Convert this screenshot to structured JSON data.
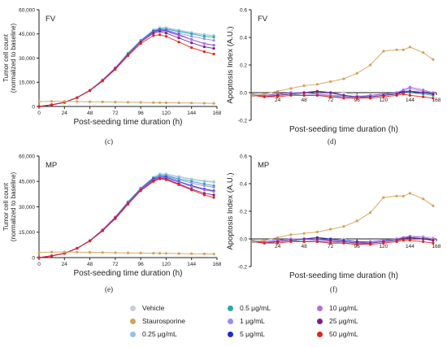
{
  "captions": [
    "(c)",
    "(d)",
    "(e)",
    "(f)"
  ],
  "legend": [
    {
      "label": "Vehicle",
      "color": "#c9cdd6"
    },
    {
      "label": "0.5 μg/mL",
      "color": "#26a9a7"
    },
    {
      "label": "10 μg/mL",
      "color": "#b36fe0"
    },
    {
      "label": "Staurosporine",
      "color": "#d4a259"
    },
    {
      "label": "1 μg/mL",
      "color": "#9b8cf0"
    },
    {
      "label": "25 μg/mL",
      "color": "#7a1f8c"
    },
    {
      "label": "0.25 μg/mL",
      "color": "#8fc3ea"
    },
    {
      "label": "5 μg/mL",
      "color": "#1a2ad6"
    },
    {
      "label": "50 μg/mL",
      "color": "#e3241b"
    }
  ],
  "chart_data": [
    {
      "type": "line",
      "tag": "FV",
      "title": "",
      "xlabel": "Post-seeding time duration (h)",
      "ylabel": "Tumor cell count (normalized to baseline)",
      "xlim": [
        0,
        168
      ],
      "ylim": [
        0,
        60000
      ],
      "xticks": [
        "0",
        "24",
        "48",
        "72",
        "96",
        "120",
        "144",
        "168"
      ],
      "yticks": [
        "0",
        "15,000",
        "30,000",
        "45,000",
        "60,000"
      ],
      "x": [
        0,
        12,
        24,
        36,
        48,
        60,
        72,
        84,
        96,
        108,
        114,
        120,
        132,
        144,
        156,
        165
      ],
      "series": [
        {
          "name": "Vehicle",
          "values": [
            0,
            1000,
            2500,
            5500,
            10000,
            16500,
            24000,
            33000,
            41000,
            47500,
            49000,
            49000,
            47500,
            46000,
            44500,
            44000
          ]
        },
        {
          "name": "0.25 μg/mL",
          "values": [
            0,
            1000,
            2500,
            5500,
            10000,
            16500,
            24000,
            33000,
            41000,
            47500,
            48500,
            48500,
            47000,
            45500,
            44500,
            44000
          ]
        },
        {
          "name": "0.5 μg/mL",
          "values": [
            0,
            1000,
            2500,
            5500,
            10000,
            16500,
            24000,
            33000,
            41000,
            47000,
            48000,
            48000,
            46500,
            45000,
            43500,
            43000
          ]
        },
        {
          "name": "1 μg/mL",
          "values": [
            0,
            1000,
            2500,
            5500,
            10000,
            16500,
            24000,
            32500,
            40500,
            46500,
            47500,
            47500,
            45500,
            43500,
            42000,
            41000
          ]
        },
        {
          "name": "5 μg/mL",
          "values": [
            0,
            1000,
            2500,
            5500,
            10000,
            16000,
            23500,
            32500,
            40500,
            46500,
            47500,
            47000,
            44500,
            41500,
            39000,
            38000
          ]
        },
        {
          "name": "10 μg/mL",
          "values": [
            0,
            1000,
            2500,
            5500,
            10000,
            16500,
            24000,
            32500,
            40500,
            46000,
            47000,
            46500,
            44000,
            41500,
            39000,
            38000
          ]
        },
        {
          "name": "25 μg/mL",
          "values": [
            0,
            1000,
            2500,
            5500,
            10000,
            16000,
            23500,
            32000,
            40000,
            45500,
            46500,
            45500,
            42500,
            39500,
            37000,
            36000
          ]
        },
        {
          "name": "50 μg/mL",
          "values": [
            0,
            1000,
            2500,
            5500,
            9800,
            15800,
            23000,
            31500,
            39000,
            44000,
            44500,
            43500,
            40000,
            36500,
            34000,
            32500
          ]
        },
        {
          "name": "Staurosporine",
          "values": [
            3000,
            3200,
            3200,
            3000,
            2900,
            2800,
            2700,
            2600,
            2500,
            2400,
            2350,
            2300,
            2200,
            2100,
            2000,
            1900
          ]
        }
      ]
    },
    {
      "type": "line",
      "tag": "FV",
      "title": "",
      "xlabel": "Post-seeding time duration (h)",
      "ylabel": "Apoptosis Index (A.U.)",
      "xlim": [
        0,
        168
      ],
      "ylim": [
        -0.2,
        0.6
      ],
      "xticks": [
        "24",
        "48",
        "72",
        "96",
        "120",
        "144",
        "168"
      ],
      "yticks": [
        "-0.2",
        "0.0",
        "0.2",
        "0.4",
        "0.6"
      ],
      "x": [
        2,
        12,
        24,
        36,
        48,
        60,
        72,
        84,
        96,
        108,
        120,
        132,
        138,
        144,
        156,
        165
      ],
      "series": [
        {
          "name": "Vehicle",
          "values": [
            -0.01,
            -0.02,
            -0.01,
            0.0,
            -0.01,
            -0.02,
            -0.01,
            0.0,
            -0.02,
            -0.03,
            -0.02,
            -0.01,
            0.0,
            0.01,
            0.01,
            0.0
          ]
        },
        {
          "name": "0.25 μg/mL",
          "values": [
            -0.01,
            -0.02,
            -0.02,
            -0.01,
            -0.02,
            -0.02,
            -0.02,
            -0.03,
            -0.04,
            -0.03,
            -0.02,
            0.0,
            0.01,
            0.01,
            0.0,
            -0.01
          ]
        },
        {
          "name": "0.5 μg/mL",
          "values": [
            -0.02,
            -0.03,
            -0.02,
            -0.01,
            -0.02,
            -0.02,
            -0.03,
            -0.03,
            -0.04,
            -0.03,
            -0.02,
            -0.01,
            0.0,
            0.0,
            -0.01,
            -0.02
          ]
        },
        {
          "name": "1 μg/mL",
          "values": [
            -0.02,
            -0.02,
            -0.01,
            0.0,
            0.0,
            -0.01,
            -0.02,
            -0.02,
            -0.03,
            -0.02,
            -0.01,
            0.0,
            0.02,
            0.03,
            0.01,
            0.0
          ]
        },
        {
          "name": "5 μg/mL",
          "values": [
            -0.02,
            -0.02,
            -0.01,
            0.0,
            0.0,
            0.01,
            0.0,
            -0.02,
            -0.03,
            -0.02,
            -0.01,
            0.0,
            0.01,
            0.01,
            0.0,
            -0.01
          ]
        },
        {
          "name": "10 μg/mL",
          "values": [
            -0.02,
            -0.02,
            -0.01,
            0.0,
            0.0,
            -0.01,
            -0.02,
            -0.03,
            -0.03,
            -0.02,
            -0.01,
            0.0,
            0.02,
            0.04,
            0.02,
            0.0
          ]
        },
        {
          "name": "25 μg/mL",
          "values": [
            -0.02,
            -0.03,
            -0.02,
            -0.01,
            0.0,
            0.01,
            0.0,
            -0.02,
            -0.03,
            -0.03,
            -0.02,
            -0.01,
            0.0,
            0.01,
            0.0,
            -0.01
          ]
        },
        {
          "name": "50 μg/mL",
          "values": [
            -0.02,
            -0.03,
            -0.03,
            -0.02,
            -0.02,
            -0.02,
            -0.03,
            -0.04,
            -0.04,
            -0.04,
            -0.03,
            -0.02,
            -0.01,
            -0.02,
            -0.03,
            -0.04
          ]
        },
        {
          "name": "Staurosporine",
          "values": [
            -0.02,
            -0.01,
            0.01,
            0.03,
            0.05,
            0.06,
            0.08,
            0.1,
            0.14,
            0.2,
            0.3,
            0.31,
            0.31,
            0.33,
            0.29,
            0.24
          ]
        }
      ]
    },
    {
      "type": "line",
      "tag": "MP",
      "title": "",
      "xlabel": "Post-seeding time duration (h)",
      "ylabel": "Tumor cell count (normalized to baseline)",
      "xlim": [
        0,
        168
      ],
      "ylim": [
        0,
        60000
      ],
      "xticks": [
        "0",
        "24",
        "48",
        "72",
        "96",
        "120",
        "144",
        "168"
      ],
      "yticks": [
        "0",
        "15,000",
        "30,000",
        "45,000",
        "60,000"
      ],
      "x": [
        0,
        12,
        24,
        36,
        48,
        60,
        72,
        84,
        96,
        108,
        114,
        120,
        132,
        144,
        156,
        165
      ],
      "series": [
        {
          "name": "Vehicle",
          "values": [
            0,
            1000,
            2500,
            5500,
            10000,
            16500,
            24000,
            33000,
            41000,
            47500,
            49500,
            49500,
            48000,
            46500,
            45500,
            45000
          ]
        },
        {
          "name": "0.25 μg/mL",
          "values": [
            0,
            1000,
            2500,
            5500,
            10000,
            16500,
            24000,
            33000,
            41000,
            47500,
            49000,
            49000,
            47500,
            46000,
            45000,
            44500
          ]
        },
        {
          "name": "0.5 μg/mL",
          "values": [
            0,
            1000,
            2500,
            5500,
            10000,
            16500,
            24000,
            33000,
            41000,
            47000,
            48500,
            48500,
            46500,
            45000,
            43500,
            42500
          ]
        },
        {
          "name": "1 μg/mL",
          "values": [
            0,
            1000,
            2500,
            5500,
            10000,
            16500,
            24000,
            32500,
            40500,
            46500,
            48000,
            48000,
            46000,
            44000,
            42500,
            41500
          ]
        },
        {
          "name": "5 μg/mL",
          "values": [
            0,
            1000,
            2500,
            5500,
            10000,
            16000,
            23500,
            32500,
            40500,
            46500,
            47500,
            47500,
            45000,
            42500,
            40500,
            39500
          ]
        },
        {
          "name": "10 μg/mL",
          "values": [
            0,
            1000,
            2500,
            5500,
            10000,
            16500,
            24000,
            32500,
            40500,
            46000,
            47500,
            47000,
            44500,
            42000,
            40000,
            39000
          ]
        },
        {
          "name": "25 μg/mL",
          "values": [
            0,
            1000,
            2500,
            5500,
            10000,
            16000,
            23500,
            32000,
            40000,
            45500,
            47000,
            46500,
            43500,
            40500,
            38000,
            37000
          ]
        },
        {
          "name": "50 μg/mL",
          "values": [
            0,
            1000,
            2500,
            5500,
            9800,
            15800,
            23000,
            31500,
            39500,
            45000,
            46500,
            46000,
            43000,
            40000,
            37000,
            35500
          ]
        },
        {
          "name": "Staurosporine",
          "values": [
            3000,
            3300,
            3300,
            3200,
            3100,
            3000,
            2900,
            2800,
            2700,
            2600,
            2550,
            2500,
            2400,
            2300,
            2200,
            2100
          ]
        }
      ]
    },
    {
      "type": "line",
      "tag": "MP",
      "title": "",
      "xlabel": "Post-seeding time duration (h)",
      "ylabel": "Apoptosis Index (A.U.)",
      "xlim": [
        0,
        168
      ],
      "ylim": [
        -0.2,
        0.6
      ],
      "xticks": [
        "24",
        "48",
        "72",
        "96",
        "120",
        "144",
        "168"
      ],
      "yticks": [
        "-0.2",
        "0.0",
        "0.2",
        "0.4",
        "0.6"
      ],
      "x": [
        2,
        12,
        24,
        36,
        48,
        60,
        72,
        84,
        96,
        108,
        120,
        132,
        138,
        144,
        156,
        165
      ],
      "series": [
        {
          "name": "Vehicle",
          "values": [
            -0.01,
            -0.02,
            -0.01,
            0.0,
            -0.01,
            -0.02,
            -0.01,
            0.0,
            -0.02,
            -0.03,
            -0.02,
            0.0,
            0.01,
            0.02,
            0.02,
            0.01
          ]
        },
        {
          "name": "0.25 μg/mL",
          "values": [
            -0.01,
            -0.02,
            -0.02,
            -0.01,
            -0.02,
            -0.02,
            -0.02,
            -0.03,
            -0.04,
            -0.03,
            -0.02,
            0.0,
            0.01,
            0.02,
            0.01,
            0.0
          ]
        },
        {
          "name": "0.5 μg/mL",
          "values": [
            -0.02,
            -0.03,
            -0.02,
            -0.01,
            -0.02,
            -0.02,
            -0.03,
            -0.03,
            -0.04,
            -0.03,
            -0.02,
            -0.01,
            0.0,
            0.01,
            0.0,
            -0.01
          ]
        },
        {
          "name": "1 μg/mL",
          "values": [
            -0.02,
            -0.02,
            -0.01,
            0.0,
            0.0,
            -0.01,
            -0.02,
            -0.02,
            -0.03,
            -0.02,
            -0.01,
            0.0,
            0.01,
            0.02,
            0.01,
            0.0
          ]
        },
        {
          "name": "5 μg/mL",
          "values": [
            -0.02,
            -0.02,
            -0.01,
            0.0,
            0.0,
            0.01,
            0.0,
            -0.01,
            -0.02,
            -0.02,
            -0.01,
            0.0,
            0.01,
            0.01,
            0.0,
            -0.01
          ]
        },
        {
          "name": "10 μg/mL",
          "values": [
            -0.02,
            -0.02,
            -0.01,
            0.0,
            0.0,
            -0.01,
            -0.02,
            -0.02,
            -0.03,
            -0.02,
            -0.01,
            0.0,
            0.01,
            0.02,
            0.01,
            0.0
          ]
        },
        {
          "name": "25 μg/mL",
          "values": [
            -0.02,
            -0.03,
            -0.02,
            -0.01,
            0.0,
            0.0,
            -0.01,
            -0.02,
            -0.03,
            -0.03,
            -0.02,
            -0.01,
            0.0,
            0.01,
            0.0,
            -0.01
          ]
        },
        {
          "name": "50 μg/mL",
          "values": [
            -0.02,
            -0.03,
            -0.03,
            -0.02,
            -0.02,
            -0.02,
            -0.03,
            -0.03,
            -0.04,
            -0.04,
            -0.03,
            -0.02,
            -0.01,
            -0.01,
            -0.02,
            -0.03
          ]
        },
        {
          "name": "Staurosporine",
          "values": [
            -0.02,
            -0.01,
            0.01,
            0.03,
            0.04,
            0.05,
            0.07,
            0.09,
            0.13,
            0.19,
            0.3,
            0.31,
            0.31,
            0.33,
            0.29,
            0.24
          ]
        }
      ]
    }
  ]
}
